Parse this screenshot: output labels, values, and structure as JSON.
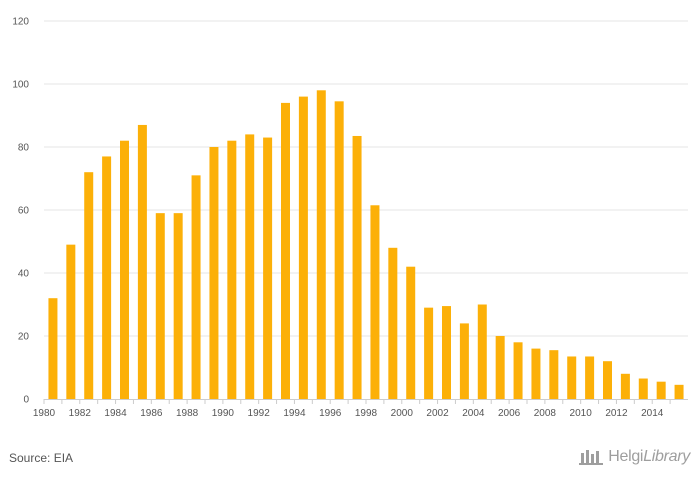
{
  "chart_data": {
    "type": "bar",
    "categories": [
      "1980",
      "1981",
      "1982",
      "1983",
      "1984",
      "1985",
      "1986",
      "1987",
      "1988",
      "1989",
      "1990",
      "1991",
      "1992",
      "1993",
      "1994",
      "1995",
      "1996",
      "1997",
      "1998",
      "1999",
      "2000",
      "2001",
      "2002",
      "2003",
      "2004",
      "2005",
      "2006",
      "2007",
      "2008",
      "2009",
      "2010",
      "2011",
      "2012",
      "2013",
      "2014",
      "2015"
    ],
    "values": [
      32,
      49,
      72,
      77,
      82,
      87,
      59,
      59,
      71,
      80,
      82,
      84,
      83,
      94,
      96,
      98,
      94.5,
      83.5,
      61.5,
      48,
      42,
      29,
      29.5,
      24,
      30,
      20,
      18,
      16,
      15.5,
      13.5,
      13.5,
      12,
      8,
      6.5,
      5.5,
      4.5
    ],
    "x_tick_labels": [
      "1980",
      "1982",
      "1984",
      "1986",
      "1988",
      "1990",
      "1992",
      "1994",
      "1996",
      "1998",
      "2000",
      "2002",
      "2004",
      "2006",
      "2008",
      "2010",
      "2012",
      "2014"
    ],
    "y_ticks": [
      0,
      20,
      40,
      60,
      80,
      100,
      120
    ],
    "ylim": [
      0,
      120
    ],
    "title": "",
    "xlabel": "",
    "ylabel": "",
    "grid": true,
    "legend": "none",
    "bar_color": "#fcb008"
  },
  "footer": {
    "source": "Source: EIA",
    "logo_text_main": "Helgi",
    "logo_text_lib": "Library",
    "logo_icon": "helgi-library-logo-icon"
  }
}
